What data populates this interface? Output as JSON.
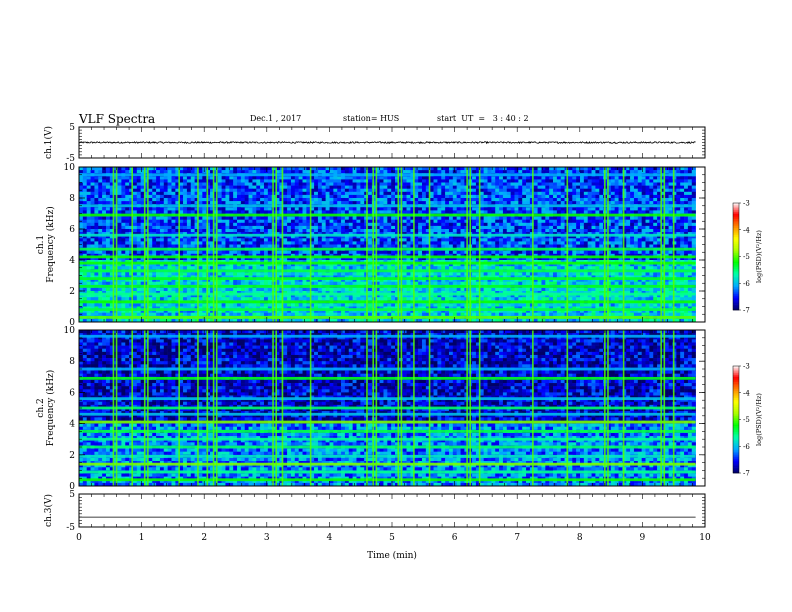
{
  "header": {
    "title": "VLF Spectra",
    "date": "Dec.1 , 2017",
    "station": "station= HUS",
    "start": "start  UT  =   3 : 40 : 2"
  },
  "chart_data": [
    {
      "type": "line",
      "panel": "ch1-waveform",
      "ylabel": "ch.1(V)",
      "ylim": [
        -5,
        5
      ],
      "yticks": [
        -5,
        5
      ],
      "x": [
        0,
        9.85
      ],
      "baseline_value": 0,
      "noise_amplitude_V": 0.25,
      "color": "#000000"
    },
    {
      "type": "heatmap",
      "panel": "ch1-spectrogram",
      "ylabel": "ch.1",
      "ylabel2": "Frequency  (kHz)",
      "ylim": [
        0,
        10
      ],
      "yticks": [
        0,
        2,
        4,
        6,
        8,
        10
      ],
      "xlim": [
        0,
        9.85
      ],
      "colorbar": {
        "label": "log(PSD)(V²/Hz)",
        "range": [
          -7,
          -3
        ],
        "ticks": [
          "-3",
          "-4",
          "-5",
          "-6",
          "-7"
        ],
        "colormap": [
          "#000066",
          "#0000ff",
          "#00aaff",
          "#00ffaa",
          "#00ff00",
          "#aaff00",
          "#ffff00",
          "#ff8800",
          "#ff0000",
          "#ffffff"
        ]
      },
      "background_level": -6.4,
      "horizontal_bands_kHz": [
        {
          "f": 0.3,
          "level": -5.0
        },
        {
          "f": 0.8,
          "level": -5.4
        },
        {
          "f": 1.3,
          "level": -5.2
        },
        {
          "f": 1.8,
          "level": -5.6
        },
        {
          "f": 2.3,
          "level": -5.3
        },
        {
          "f": 2.8,
          "level": -5.3
        },
        {
          "f": 3.3,
          "level": -5.4
        },
        {
          "f": 3.8,
          "level": -5.2
        },
        {
          "f": 4.2,
          "level": -5.2
        },
        {
          "f": 4.7,
          "level": -5.4
        },
        {
          "f": 5.6,
          "level": -5.8
        },
        {
          "f": 6.9,
          "level": -5.2
        },
        {
          "f": 7.5,
          "level": -6.0
        },
        {
          "f": 9.5,
          "level": -6.1
        }
      ],
      "vertical_events_min": [
        0.55,
        0.6,
        0.85,
        1.05,
        1.1,
        1.6,
        1.9,
        2.05,
        2.15,
        2.2,
        3.1,
        3.15,
        3.25,
        3.7,
        4.6,
        4.7,
        4.75,
        5.1,
        5.15,
        5.35,
        5.6,
        6.2,
        6.25,
        6.4,
        7.25,
        7.8,
        8.4,
        8.45,
        8.7,
        9.3,
        9.35,
        9.5
      ]
    },
    {
      "type": "heatmap",
      "panel": "ch2-spectrogram",
      "ylabel": "ch.2",
      "ylabel2": "Frequency  (kHz)",
      "ylim": [
        0,
        10
      ],
      "yticks": [
        0,
        2,
        4,
        6,
        8,
        10
      ],
      "xlim": [
        0,
        9.85
      ],
      "colorbar": {
        "label": "log(PSD)(V²/Hz)",
        "range": [
          -7,
          -3
        ],
        "ticks": [
          "-3",
          "-4",
          "-5",
          "-6",
          "-7"
        ],
        "colormap": [
          "#000066",
          "#0000ff",
          "#00aaff",
          "#00ffaa",
          "#00ff00",
          "#aaff00",
          "#ffff00",
          "#ff8800",
          "#ff0000",
          "#ffffff"
        ]
      },
      "background_level": -6.7,
      "horizontal_bands_kHz": [
        {
          "f": 0.4,
          "level": -5.2
        },
        {
          "f": 0.9,
          "level": -5.6
        },
        {
          "f": 1.4,
          "level": -4.9
        },
        {
          "f": 1.9,
          "level": -5.8
        },
        {
          "f": 2.5,
          "level": -5.5
        },
        {
          "f": 3.0,
          "level": -5.6
        },
        {
          "f": 3.5,
          "level": -5.4
        },
        {
          "f": 4.1,
          "level": -4.9
        },
        {
          "f": 4.6,
          "level": -6.0
        },
        {
          "f": 5.0,
          "level": -5.5
        },
        {
          "f": 5.6,
          "level": -6.0
        },
        {
          "f": 6.9,
          "level": -5.3
        },
        {
          "f": 7.5,
          "level": -6.1
        },
        {
          "f": 9.6,
          "level": -6.1
        }
      ],
      "vertical_events_min": [
        0.55,
        0.6,
        0.85,
        1.05,
        1.1,
        1.6,
        1.9,
        2.05,
        2.15,
        2.2,
        3.1,
        3.15,
        3.25,
        3.7,
        4.6,
        4.7,
        4.75,
        5.1,
        5.15,
        5.35,
        5.6,
        6.2,
        6.25,
        6.4,
        7.25,
        7.8,
        8.4,
        8.45,
        8.7,
        9.3,
        9.35,
        9.5
      ]
    },
    {
      "type": "line",
      "panel": "ch3-waveform",
      "ylabel": "ch.3(V)",
      "ylim": [
        -5,
        5
      ],
      "yticks": [
        -5,
        5
      ],
      "x": [
        0,
        9.85
      ],
      "baseline_value": -2.0,
      "noise_amplitude_V": 0,
      "color": "#000000"
    }
  ],
  "xaxis": {
    "label": "Time  (min)",
    "range": [
      0,
      10
    ],
    "ticks": [
      "0",
      "1",
      "2",
      "3",
      "4",
      "5",
      "6",
      "7",
      "8",
      "9",
      "10"
    ]
  }
}
